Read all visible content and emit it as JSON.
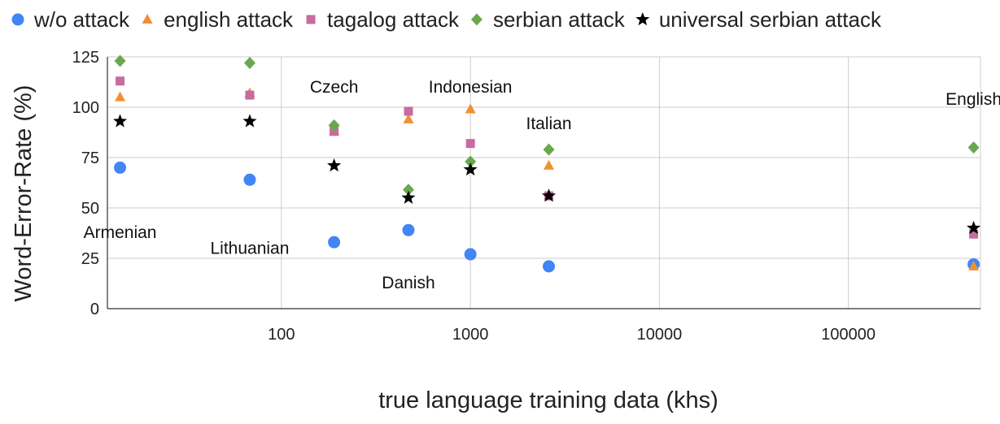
{
  "chart_data": {
    "type": "scatter",
    "xlabel": "true language training data (khs)",
    "ylabel": "Word-Error-Rate (%)",
    "x_scale": "log",
    "xlim": [
      12,
      500000
    ],
    "ylim": [
      0,
      125
    ],
    "x_ticks": [
      100,
      1000,
      10000,
      100000
    ],
    "x_tick_labels": [
      "100",
      "1000",
      "10000",
      "100000"
    ],
    "y_ticks": [
      0,
      25,
      50,
      75,
      100,
      125
    ],
    "y_tick_labels": [
      "0",
      "25",
      "50",
      "75",
      "100",
      "125"
    ],
    "grid": true,
    "legend_position": "top",
    "series": [
      {
        "name": "w/o attack",
        "marker": "circle",
        "color": "#4285f4",
        "points": [
          [
            14,
            70
          ],
          [
            68,
            64
          ],
          [
            190,
            33
          ],
          [
            470,
            39
          ],
          [
            1000,
            27
          ],
          [
            2600,
            21
          ],
          [
            460000,
            22
          ]
        ]
      },
      {
        "name": "english attack",
        "marker": "triangle",
        "color": "#f09035",
        "points": [
          [
            14,
            105
          ],
          [
            68,
            107
          ],
          [
            190,
            88
          ],
          [
            470,
            94
          ],
          [
            1000,
            99
          ],
          [
            2600,
            71
          ],
          [
            460000,
            21
          ]
        ]
      },
      {
        "name": "tagalog attack",
        "marker": "square",
        "color": "#c66c9e",
        "points": [
          [
            14,
            113
          ],
          [
            68,
            106
          ],
          [
            190,
            88
          ],
          [
            470,
            98
          ],
          [
            1000,
            82
          ],
          [
            2600,
            56
          ],
          [
            460000,
            37
          ]
        ]
      },
      {
        "name": "serbian attack",
        "marker": "diamond",
        "color": "#6aa84f",
        "points": [
          [
            14,
            123
          ],
          [
            68,
            122
          ],
          [
            190,
            91
          ],
          [
            470,
            59
          ],
          [
            1000,
            73
          ],
          [
            2600,
            79
          ],
          [
            460000,
            80
          ]
        ]
      },
      {
        "name": "universal serbian attack",
        "marker": "star",
        "color": "#000000",
        "points": [
          [
            14,
            93
          ],
          [
            68,
            93
          ],
          [
            190,
            71
          ],
          [
            470,
            55
          ],
          [
            1000,
            69
          ],
          [
            2600,
            56
          ],
          [
            460000,
            40
          ]
        ]
      }
    ],
    "annotations": [
      {
        "text": "Armenian",
        "x": 14,
        "y": 38
      },
      {
        "text": "Lithuanian",
        "x": 68,
        "y": 30
      },
      {
        "text": "Czech",
        "x": 190,
        "y": 110
      },
      {
        "text": "Danish",
        "x": 470,
        "y": 13
      },
      {
        "text": "Indonesian",
        "x": 1000,
        "y": 110
      },
      {
        "text": "Italian",
        "x": 2600,
        "y": 92
      },
      {
        "text": "English",
        "x": 460000,
        "y": 104
      }
    ]
  }
}
